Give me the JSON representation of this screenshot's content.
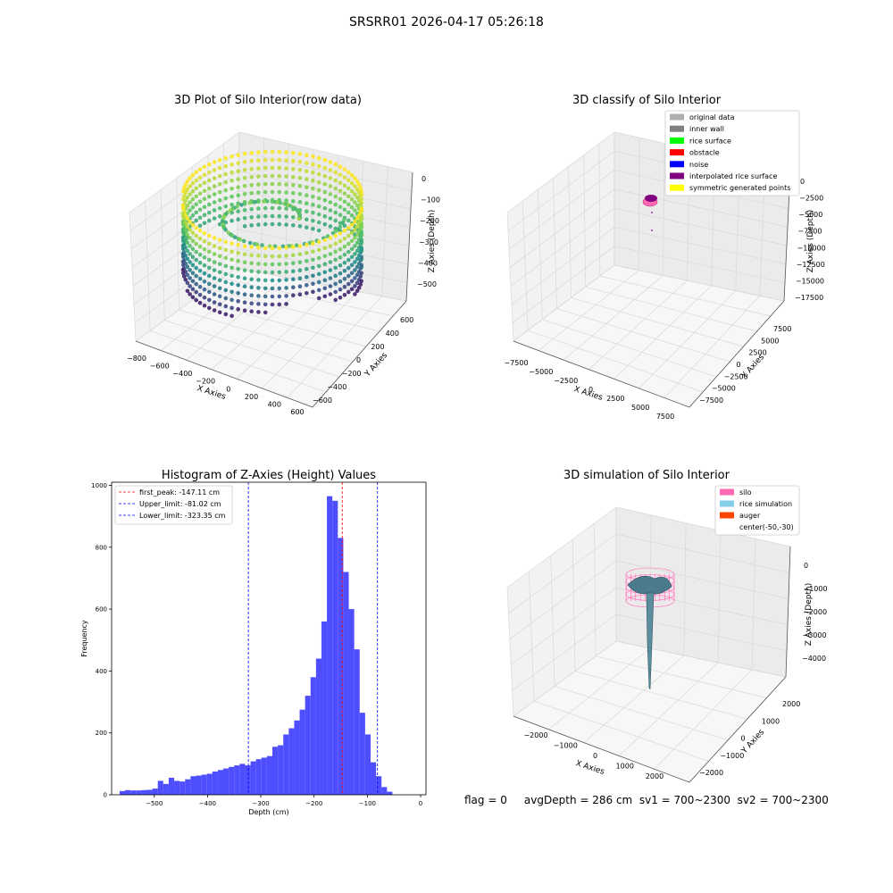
{
  "figure_title": "SRSRR01 2026-04-17 05:26:18",
  "status_text": "flag = 0     avgDepth = 286 cm  sv1 = 700~2300  sv2 = 700~2300",
  "chart_data": [
    {
      "type": "scatter3d",
      "title": "3D Plot of Silo Interior(row data)",
      "xlabel": "X Axies",
      "ylabel": "Y Axies",
      "zlabel": "Z Axies (Depth)",
      "xticks": [
        -800,
        -600,
        -400,
        -200,
        0,
        200,
        400,
        600
      ],
      "yticks": [
        -600,
        -400,
        -200,
        0,
        200,
        400,
        600
      ],
      "zticks": [
        0,
        -100,
        -200,
        -300,
        -400,
        -500
      ],
      "colormap": "viridis",
      "description_values": {
        "ring_radius_approx": 550,
        "depth_range": [
          -560,
          -20
        ]
      }
    },
    {
      "type": "scatter3d",
      "title": "3D classify of Silo Interior",
      "xlabel": "X Axies",
      "ylabel": "Y Axies",
      "zlabel": "Z Axies (Depth)",
      "xticks": [
        -7500,
        -5000,
        -2500,
        0,
        2500,
        5000,
        7500
      ],
      "yticks": [
        -7500,
        -5000,
        -2500,
        0,
        2500,
        5000,
        7500
      ],
      "zticks": [
        0,
        -2500,
        -5000,
        -7500,
        -10000,
        -12500,
        -15000,
        -17500
      ],
      "legend_position": "top-right",
      "legend": [
        {
          "label": "original data",
          "color": "#b0b0b0"
        },
        {
          "label": "inner wall",
          "color": "#808080"
        },
        {
          "label": "rice surface",
          "color": "#00ff00"
        },
        {
          "label": "obstacle",
          "color": "#ff0000"
        },
        {
          "label": "noise",
          "color": "#0000ff"
        },
        {
          "label": "interpolated rice surface",
          "color": "#800080"
        },
        {
          "label": "symmetric generated points",
          "color": "#ffff00"
        }
      ]
    },
    {
      "type": "bar",
      "title": "Histogram of Z-Axies (Height) Values",
      "xlabel": "Depth (cm)",
      "ylabel": "Frequency",
      "xlim": [
        -580,
        10
      ],
      "ylim": [
        0,
        1010
      ],
      "xticks": [
        -500,
        -400,
        -300,
        -200,
        -100,
        0
      ],
      "yticks": [
        0,
        200,
        400,
        600,
        800,
        1000
      ],
      "bar_color": "#4444ff",
      "bin_start": -565,
      "bin_width": 10.24,
      "values": [
        12,
        15,
        14,
        14,
        15,
        16,
        20,
        45,
        35,
        55,
        45,
        43,
        50,
        60,
        62,
        65,
        68,
        75,
        80,
        85,
        90,
        95,
        100,
        95,
        108,
        115,
        120,
        125,
        155,
        160,
        195,
        215,
        240,
        275,
        320,
        380,
        440,
        560,
        965,
        950,
        830,
        720,
        600,
        470,
        265,
        195,
        105,
        60,
        25,
        10
      ],
      "vlines": [
        {
          "label": "first_peak: -147.11 cm",
          "x": -147.11,
          "color": "#ff0000"
        },
        {
          "label": "Upper_limit: -81.02 cm",
          "x": -81.02,
          "color": "#0000ff"
        },
        {
          "label": "Lower_limit: -323.35 cm",
          "x": -323.35,
          "color": "#0000ff"
        }
      ],
      "legend_position": "top-left"
    },
    {
      "type": "surface3d",
      "title": "3D simulation of Silo Interior",
      "xlabel": "X Axies",
      "ylabel": "Y Axies",
      "zlabel": "Z Axies (Depth)",
      "xticks": [
        -2000,
        -1000,
        0,
        1000,
        2000
      ],
      "yticks": [
        -2000,
        -1000,
        0,
        1000,
        2000
      ],
      "zticks": [
        0,
        -1000,
        -2000,
        -3000,
        -4000
      ],
      "legend_position": "top-right",
      "legend": [
        {
          "label": "silo",
          "color": "#ff69b4"
        },
        {
          "label": "rice simulation",
          "color": "#87ceeb"
        },
        {
          "label": "auger",
          "color": "#ff4500"
        },
        {
          "label": "center(-50,-30)",
          "color": ""
        }
      ]
    }
  ]
}
